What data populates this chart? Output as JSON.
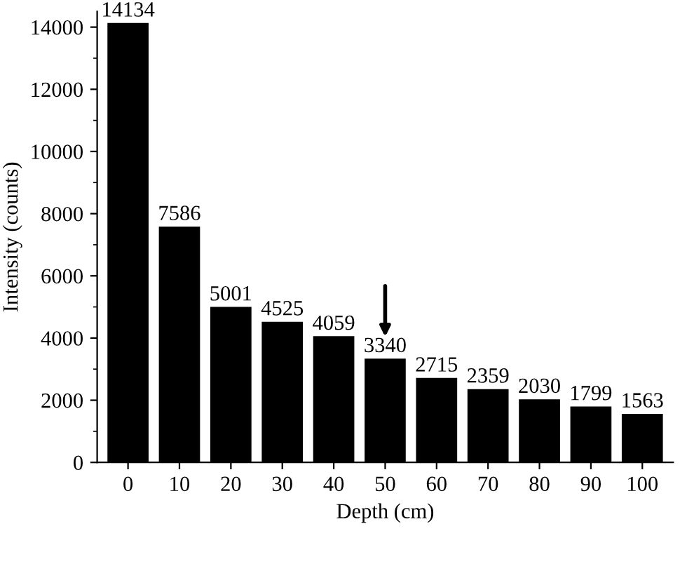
{
  "chart_data": {
    "type": "bar",
    "xlabel": "Depth (cm)",
    "ylabel": "Intensity (counts)",
    "categories": [
      "0",
      "10",
      "20",
      "30",
      "40",
      "50",
      "60",
      "70",
      "80",
      "90",
      "100"
    ],
    "values": [
      14134,
      7586,
      5001,
      4525,
      4059,
      3340,
      2715,
      2359,
      2030,
      1799,
      1563
    ],
    "color": "#000000",
    "data_labels": true,
    "grid": false,
    "legend": false,
    "ylim": [
      0,
      14500
    ],
    "yticks": [
      0,
      2000,
      4000,
      6000,
      8000,
      10000,
      12000,
      14000
    ]
  }
}
